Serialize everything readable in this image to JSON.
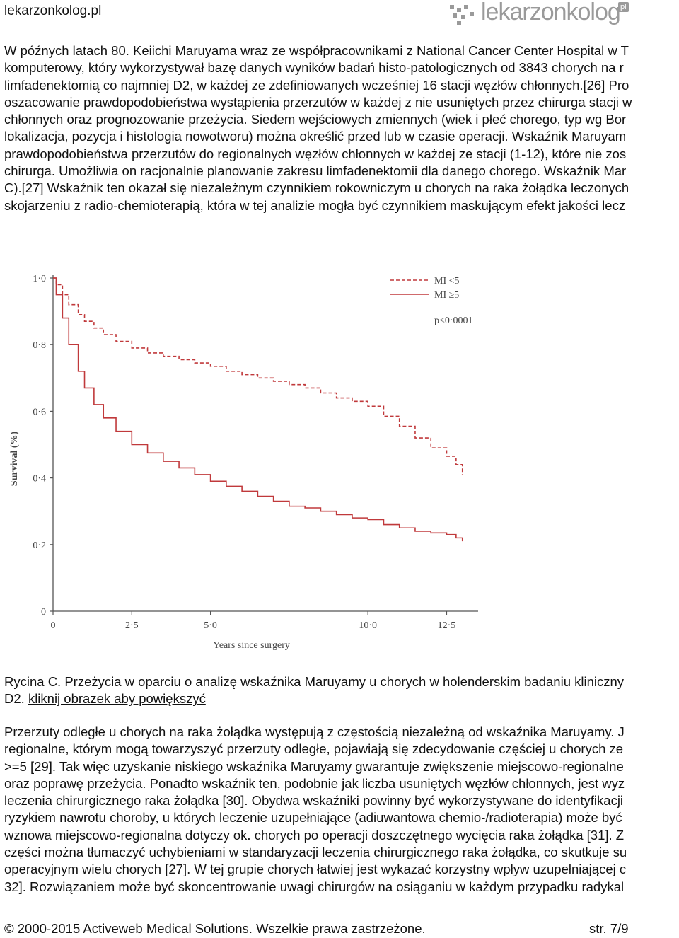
{
  "header": {
    "site_name": "lekarzonkolog.pl",
    "logo_text": "lekarzonkolog",
    "logo_badge": "pl"
  },
  "paragraph1": [
    "W późnych latach 80. Keiichi Maruyama wraz ze współpracownikami z National Cancer Center Hospital w T",
    "komputerowy, który wykorzystywał bazę danych wyników badań histo-patologicznych od 3843 chorych na r",
    "limfadenektomią co najmniej D2, w każdej ze zdefiniowanych wcześniej 16 stacji węzłów chłonnych.[26] Pro",
    "oszacowanie prawdopodobieństwa wystąpienia przerzutów w każdej z nie usuniętych przez chirurga stacji w",
    "chłonnych oraz prognozowanie przeżycia. Siedem wejściowych zmiennych (wiek i płeć chorego, typ wg Bor",
    "lokalizacja, pozycja i histologia nowotworu) można określić przed lub w czasie operacji. Wskaźnik Maruyam",
    "prawdopodobieństwa przerzutów do regionalnych węzłów chłonnych w każdej ze stacji (1-12), które nie zos",
    "chirurga. Umożliwia on racjonalnie planowanie zakresu limfadenektomii dla danego chorego. Wskaźnik Mar",
    "C).[27] Wskaźnik ten okazał się niezależnym czynnikiem rokowniczym u chorych na raka żołądka leczonych",
    "skojarzeniu z radio-chemioterapią, która w tej analizie mogła być czynnikiem maskującym efekt jakości lecz"
  ],
  "caption": {
    "line1": "Rycina C. Przeżycia w oparciu o analizę wskaźnika Maruyamy u chorych w holenderskim badaniu kliniczny",
    "line2_prefix": "D2. ",
    "link": "kliknij obrazek aby powiększyć"
  },
  "paragraph2": [
    "Przerzuty odległe u chorych na raka żołądka występują z częstością niezależną od wskaźnika Maruyamy. J",
    "regionalne, którym mogą towarzyszyć przerzuty odległe, pojawiają się zdecydowanie częściej u chorych ze",
    ">=5 [29]. Tak więc uzyskanie niskiego wskaźnika Maruyamy gwarantuje zwiększenie miejscowo-regionalne",
    "oraz poprawę przeżycia. Ponadto wskaźnik ten, podobnie jak liczba usuniętych węzłów chłonnych, jest wyz",
    "leczenia chirurgicznego raka żołądka [30]. Obydwa wskaźniki powinny być wykorzystywane do identyfikacji",
    "ryzykiem nawrotu choroby, u których leczenie uzupełniające (adiuwantowa chemio-/radioterapia) może być",
    "wznowa miejscowo-regionalna dotyczy ok. chorych po operacji doszczętnego wycięcia raka żołądka [31]. Z",
    "części można tłumaczyć uchybieniami w standaryzacji leczenia chirurgicznego raka żołądka, co skutkuje su",
    "operacyjnym wielu chorych [27]. W tej grupie chorych łatwiej jest wykazać korzystny wpływ uzupełniającej c",
    "32]. Rozwiązaniem może być skoncentrowanie uwagi chirurgów na osiąganiu w każdym przypadku radykal"
  ],
  "footer": {
    "copyright": "© 2000-2015 Activeweb Medical Solutions. Wszelkie prawa zastrzeżone.",
    "page": "str. 7/9"
  },
  "chart_data": {
    "type": "line",
    "title": "",
    "xlabel": "Years since surgery",
    "ylabel": "Survival (%)",
    "xlim": [
      0,
      13.5
    ],
    "ylim": [
      0,
      1.0
    ],
    "x_ticks": [
      "0",
      "2·5",
      "5·0",
      "10·0",
      "12·5"
    ],
    "x_tick_values": [
      0,
      2.5,
      5.0,
      10.0,
      12.5
    ],
    "y_ticks": [
      "0",
      "0·2",
      "0·4",
      "0·6",
      "0·8",
      "1·0"
    ],
    "y_tick_values": [
      0,
      0.2,
      0.4,
      0.6,
      0.8,
      1.0
    ],
    "annotation": "p<0·0001",
    "grid": false,
    "legend_position": "top-right",
    "series": [
      {
        "name": "MI <5",
        "style": "dashed",
        "color": "#c0393b",
        "x": [
          0,
          0.1,
          0.3,
          0.5,
          0.8,
          1.0,
          1.3,
          1.6,
          2.0,
          2.5,
          3.0,
          3.5,
          4.0,
          4.5,
          5.0,
          5.5,
          6.0,
          6.5,
          7.0,
          7.5,
          8.0,
          8.5,
          9.0,
          9.5,
          10.0,
          10.5,
          11.0,
          11.5,
          12.0,
          12.5,
          12.8,
          13.0
        ],
        "y": [
          1.0,
          0.98,
          0.95,
          0.92,
          0.89,
          0.87,
          0.85,
          0.83,
          0.81,
          0.79,
          0.775,
          0.765,
          0.755,
          0.745,
          0.735,
          0.72,
          0.71,
          0.7,
          0.69,
          0.68,
          0.67,
          0.655,
          0.64,
          0.63,
          0.615,
          0.585,
          0.555,
          0.52,
          0.49,
          0.465,
          0.44,
          0.41
        ]
      },
      {
        "name": "MI ≥5",
        "style": "solid",
        "color": "#c0393b",
        "x": [
          0,
          0.1,
          0.3,
          0.5,
          0.8,
          1.0,
          1.3,
          1.6,
          2.0,
          2.5,
          3.0,
          3.5,
          4.0,
          4.5,
          5.0,
          5.5,
          6.0,
          6.5,
          7.0,
          7.5,
          8.0,
          8.5,
          9.0,
          9.5,
          10.0,
          10.5,
          11.0,
          11.5,
          12.0,
          12.5,
          12.8,
          13.0
        ],
        "y": [
          1.0,
          0.95,
          0.88,
          0.8,
          0.72,
          0.67,
          0.62,
          0.58,
          0.54,
          0.5,
          0.475,
          0.45,
          0.43,
          0.41,
          0.39,
          0.375,
          0.36,
          0.345,
          0.33,
          0.315,
          0.31,
          0.3,
          0.29,
          0.28,
          0.275,
          0.26,
          0.25,
          0.24,
          0.235,
          0.23,
          0.22,
          0.21
        ]
      }
    ]
  }
}
